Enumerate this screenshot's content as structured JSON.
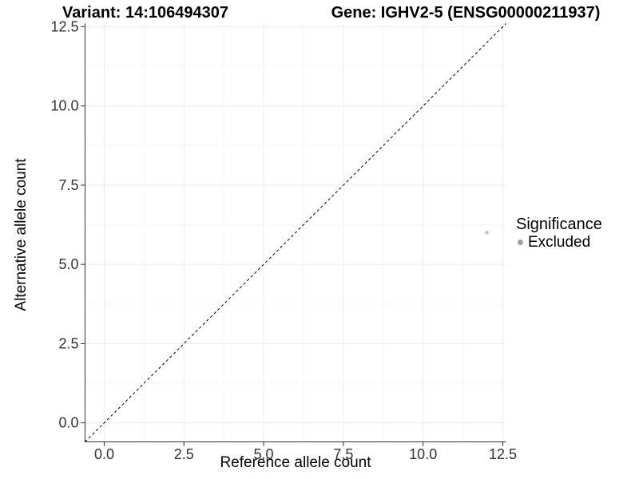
{
  "chart_data": {
    "type": "scatter",
    "titles": {
      "left": "Variant: 14:106494307",
      "right": "Gene: IGHV2-5 (ENSG00000211937)"
    },
    "xlabel": "Reference allele count",
    "ylabel": "Alternative allele count",
    "xlim": [
      -0.6,
      12.6
    ],
    "ylim": [
      -0.6,
      12.6
    ],
    "x_ticks": [
      0,
      2.5,
      5,
      7.5,
      10,
      12.5
    ],
    "x_tick_labels": [
      "0.0",
      "2.5",
      "5.0",
      "7.5",
      "10.0",
      "12.5"
    ],
    "y_ticks": [
      0,
      2.5,
      5,
      7.5,
      10,
      12.5
    ],
    "y_tick_labels": [
      "0.0",
      "2.5",
      "5.0",
      "7.5",
      "10.0",
      "12.5"
    ],
    "minor_ticks": [
      1.25,
      3.75,
      6.25,
      8.75,
      11.25
    ],
    "grid": {
      "show": true,
      "major_color": "#ebebeb",
      "minor_color": "#f6f6f6"
    },
    "axis_color": "#333333",
    "tick_label_color": "#333333",
    "identity_line": {
      "slope": 1,
      "intercept": 0,
      "style": "dashed",
      "color": "#000000"
    },
    "series": [
      {
        "name": "Excluded",
        "color": "#c5c5c5",
        "points": [
          [
            12,
            6
          ]
        ]
      }
    ],
    "legend": {
      "title": "Significance",
      "position": "right",
      "items": [
        {
          "label": "Excluded",
          "color": "#9e9e9e"
        }
      ]
    }
  }
}
